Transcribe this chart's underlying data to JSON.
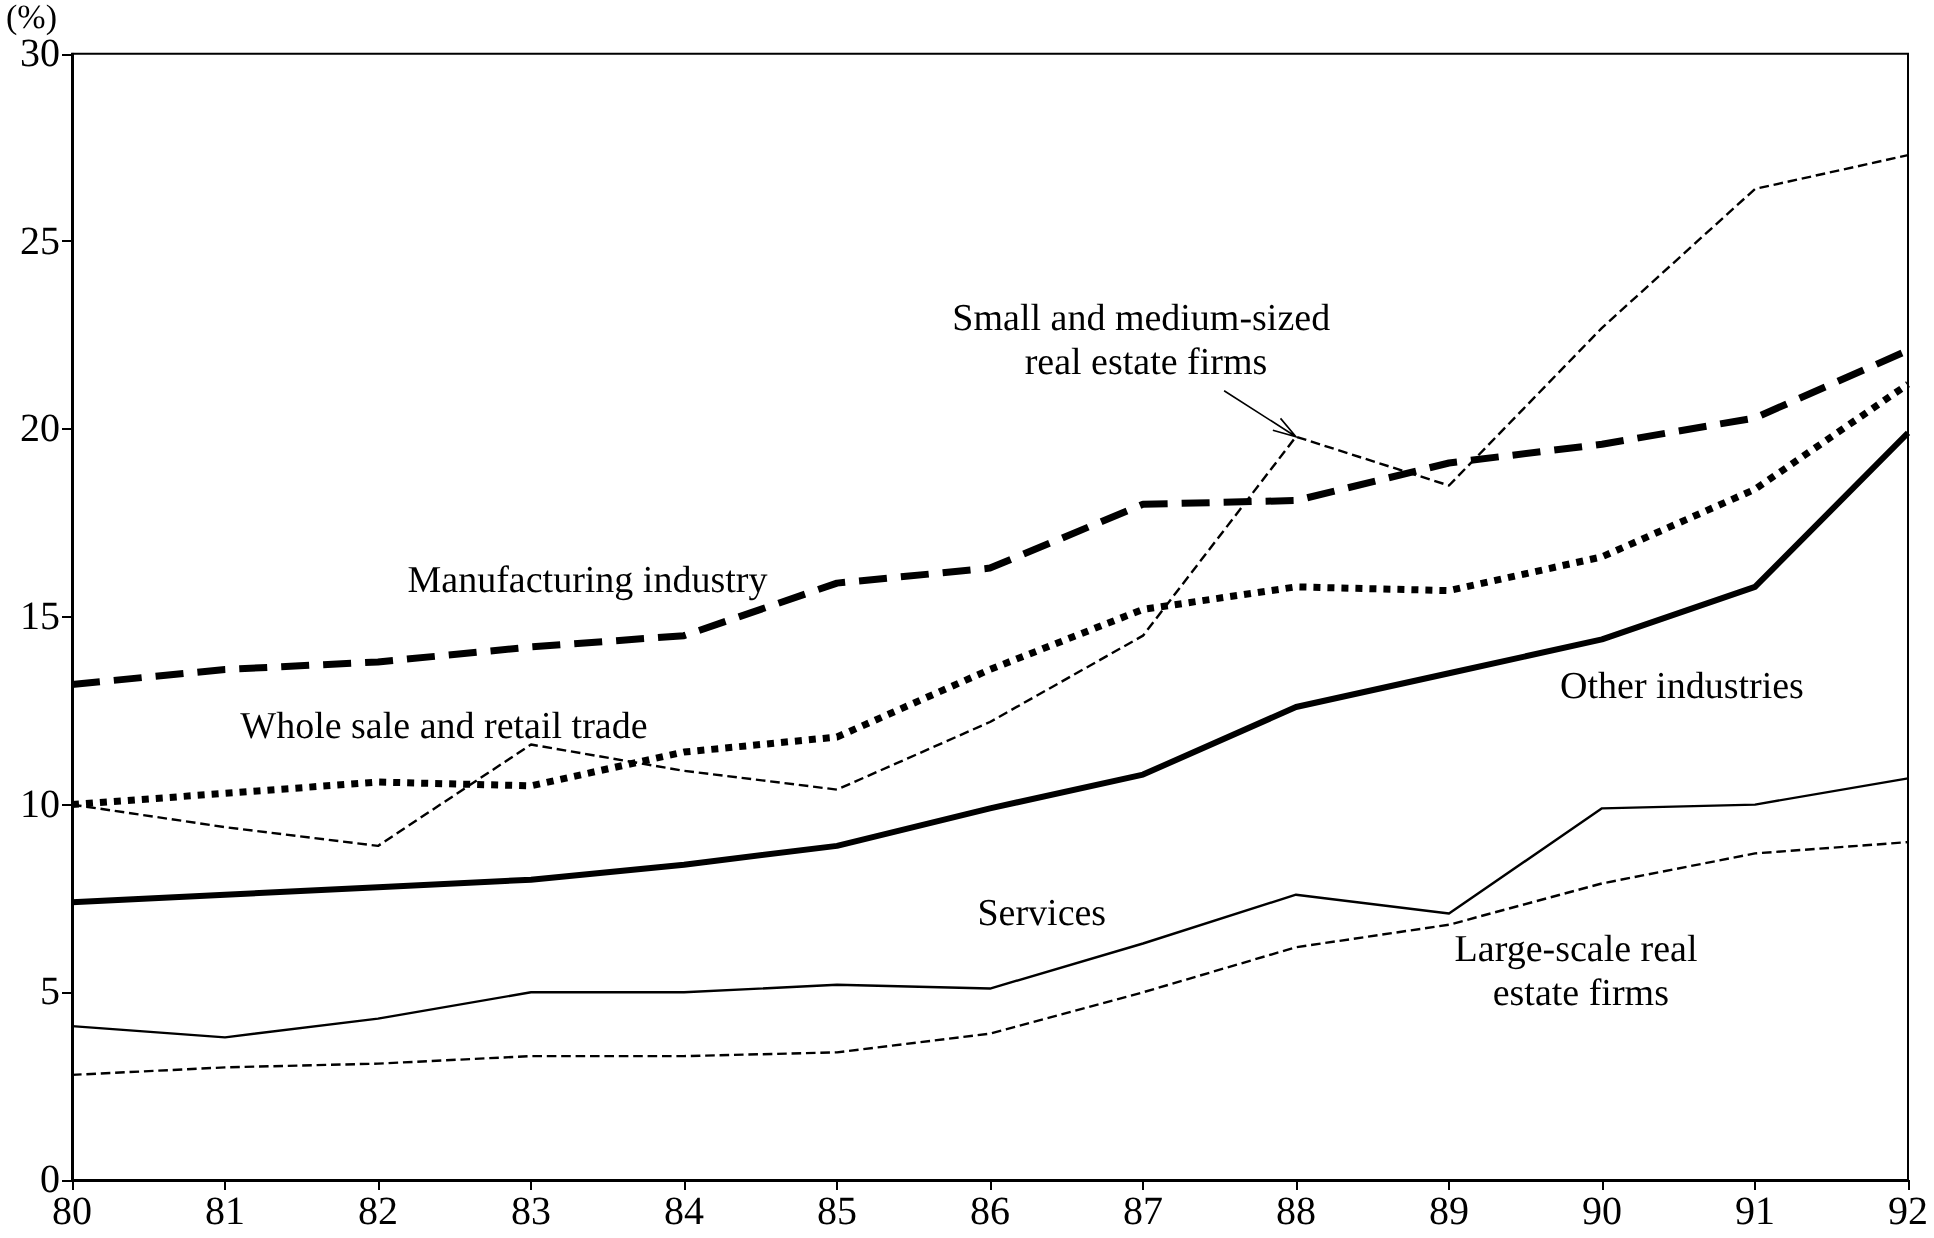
{
  "chart_data": {
    "type": "line",
    "ylabel": "(%)",
    "x": [
      80,
      81,
      82,
      83,
      84,
      85,
      86,
      87,
      88,
      89,
      90,
      91,
      92
    ],
    "xlim": [
      80,
      92
    ],
    "xticks": [
      80,
      81,
      82,
      83,
      84,
      85,
      86,
      87,
      88,
      89,
      90,
      91,
      92
    ],
    "ylim": [
      0,
      30
    ],
    "yticks": [
      0,
      5,
      10,
      15,
      20,
      25,
      30
    ],
    "grid": false,
    "legend": false,
    "marker": "none",
    "series": [
      {
        "name": "Manufacturing industry",
        "color": "#000000",
        "line_style": "dashed",
        "values": [
          13.2,
          13.6,
          13.8,
          14.2,
          14.5,
          15.9,
          16.3,
          18.0,
          18.1,
          19.1,
          19.6,
          20.3,
          22.1
        ]
      },
      {
        "name": "Whole sale and retail trade",
        "color": "#000000",
        "line_style": "dotted",
        "values": [
          10.0,
          10.3,
          10.6,
          10.5,
          11.4,
          11.8,
          13.6,
          15.2,
          15.8,
          15.7,
          16.6,
          18.4,
          21.2
        ]
      },
      {
        "name": "Small and medium-sized real estate firms",
        "color": "#000000",
        "line_style": "dashed",
        "values": [
          10.0,
          9.4,
          8.9,
          11.6,
          10.9,
          10.4,
          12.2,
          14.5,
          19.8,
          18.5,
          22.7,
          26.4,
          27.3
        ]
      },
      {
        "name": "Other industries",
        "color": "#000000",
        "line_style": "solid",
        "values": [
          7.4,
          7.6,
          7.8,
          8.0,
          8.4,
          8.9,
          9.9,
          10.8,
          12.6,
          13.5,
          14.4,
          15.8,
          19.9
        ]
      },
      {
        "name": "Services",
        "color": "#000000",
        "line_style": "solid",
        "values": [
          4.1,
          3.8,
          4.3,
          5.0,
          5.0,
          5.2,
          5.1,
          6.3,
          7.6,
          7.1,
          9.9,
          10.0,
          10.7
        ]
      },
      {
        "name": "Large-scale real estate firms",
        "color": "#000000",
        "line_style": "dashed",
        "values": [
          2.8,
          3.0,
          3.1,
          3.3,
          3.3,
          3.4,
          3.9,
          5.0,
          6.2,
          6.8,
          7.9,
          8.7,
          9.0
        ]
      }
    ]
  }
}
